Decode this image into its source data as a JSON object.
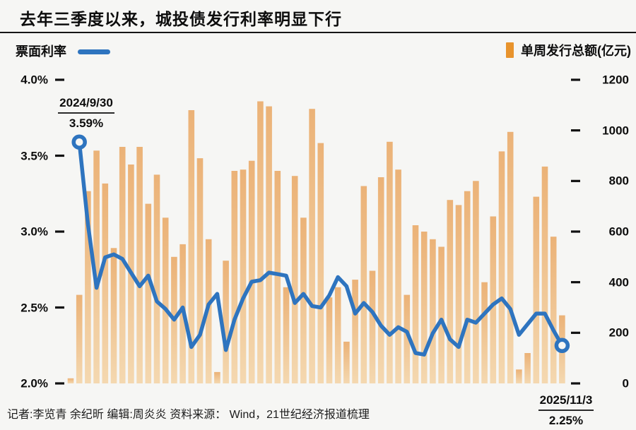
{
  "title": "去年三季度以来，城投债发行利率明显下行",
  "legend": {
    "line_label": "票面利率",
    "bar_label": "单周发行总额(亿元)"
  },
  "colors": {
    "line": "#2e74bf",
    "bar_top": "#ebb277",
    "bar_bottom": "#f4d8b0",
    "legend_bar": "#e8932c",
    "background": "#f6f6f4",
    "tick": "#111111"
  },
  "annotations": {
    "start": {
      "date": "2024/9/30",
      "value": "3.59%"
    },
    "end": {
      "date": "2025/11/3",
      "value": "2.25%"
    }
  },
  "left_axis": {
    "ticks": [
      "4.0%",
      "3.5%",
      "3.0%",
      "2.5%",
      "2.0%"
    ],
    "min": 2.0,
    "max": 4.0
  },
  "right_axis": {
    "ticks": [
      "1200",
      "1000",
      "800",
      "600",
      "400",
      "200",
      "0"
    ],
    "min": 0,
    "max": 1200
  },
  "source_note": "记者:李览青 余纪昕  编辑:周炎炎  资料来源： Wind，21世纪经济报道梳理",
  "chart_data": {
    "type": "combo",
    "x_description": "weekly issues, 2024/9/30 through 2025/11/3",
    "series": [
      {
        "name": "单周发行总额(亿元)",
        "type": "bar",
        "axis": "right",
        "values": [
          20,
          350,
          760,
          920,
          790,
          535,
          935,
          865,
          935,
          710,
          825,
          655,
          500,
          550,
          1080,
          890,
          570,
          45,
          485,
          840,
          845,
          880,
          1115,
          1095,
          840,
          380,
          820,
          655,
          1085,
          950,
          340,
          380,
          165,
          410,
          780,
          445,
          815,
          955,
          845,
          350,
          625,
          600,
          570,
          540,
          725,
          705,
          760,
          800,
          400,
          660,
          917,
          994,
          55,
          120,
          738,
          857,
          580,
          269
        ]
      },
      {
        "name": "票面利率",
        "type": "line",
        "axis": "left",
        "start_index": 1,
        "values": [
          3.59,
          3.05,
          2.63,
          2.83,
          2.85,
          2.82,
          2.73,
          2.64,
          2.71,
          2.54,
          2.49,
          2.42,
          2.5,
          2.24,
          2.32,
          2.52,
          2.59,
          2.22,
          2.42,
          2.56,
          2.67,
          2.68,
          2.73,
          2.72,
          2.71,
          2.53,
          2.59,
          2.51,
          2.5,
          2.58,
          2.7,
          2.64,
          2.46,
          2.53,
          2.47,
          2.38,
          2.32,
          2.37,
          2.34,
          2.2,
          2.19,
          2.33,
          2.42,
          2.29,
          2.24,
          2.42,
          2.4,
          2.46,
          2.52,
          2.56,
          2.49,
          2.32,
          2.39,
          2.46,
          2.46,
          2.35,
          2.25
        ]
      }
    ],
    "left_axis_range": [
      2.0,
      4.0
    ],
    "right_axis_range": [
      0,
      1200
    ],
    "markers": "open circles on first and last line points",
    "legend_position": "top",
    "grid": false
  }
}
